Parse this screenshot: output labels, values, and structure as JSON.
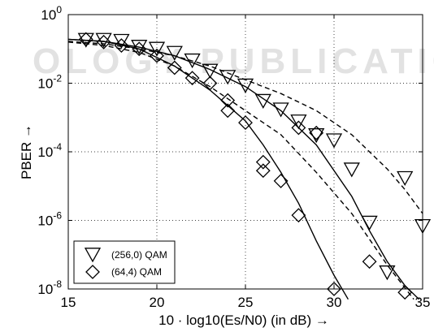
{
  "chart_data": {
    "type": "line",
    "xlabel": "10 · log10(Es/N0)   (in dB) →",
    "ylabel": "PBER →",
    "xlim": [
      15,
      35
    ],
    "ylim_log10": [
      -8,
      0
    ],
    "yscale": "log",
    "x_ticks": [
      "15",
      "20",
      "25",
      "30",
      "35"
    ],
    "y_ticks": [
      {
        "base": "10",
        "exp": "0"
      },
      {
        "base": "10",
        "exp": "-2"
      },
      {
        "base": "10",
        "exp": "-4"
      },
      {
        "base": "10",
        "exp": "-6"
      },
      {
        "base": "10",
        "exp": "-8"
      }
    ],
    "grid": true,
    "grid_style": "dotted",
    "legend_position": "bottom-left",
    "legend": [
      {
        "label": "(256,0) QAM",
        "marker": "triangle-down"
      },
      {
        "label": "(64,4) QAM",
        "marker": "diamond"
      }
    ],
    "watermark": "OLOGY PUBLICATION",
    "curves": [
      {
        "series": "(256,0) QAM",
        "style": "solid",
        "x": [
          15,
          17,
          19,
          21,
          23,
          25,
          27,
          29,
          31,
          32,
          33,
          34,
          34.8
        ],
        "log10_y": [
          -0.72,
          -0.78,
          -0.95,
          -1.2,
          -1.6,
          -2.1,
          -2.8,
          -3.8,
          -5.3,
          -6.3,
          -7.2,
          -7.9,
          -8.3
        ]
      },
      {
        "series": "(256,0) QAM",
        "style": "dashed",
        "x": [
          15,
          17,
          19,
          21,
          23,
          25,
          27,
          29,
          31,
          33,
          34,
          35
        ],
        "log10_y": [
          -0.78,
          -0.85,
          -1.0,
          -1.2,
          -1.5,
          -1.9,
          -2.3,
          -2.8,
          -3.5,
          -4.5,
          -5.1,
          -5.8
        ]
      },
      {
        "series": "(64,4) QAM",
        "style": "solid",
        "x": [
          15,
          17,
          19,
          21,
          23,
          25,
          26,
          27,
          28,
          29,
          30,
          30.8
        ],
        "log10_y": [
          -0.72,
          -0.78,
          -1.0,
          -1.5,
          -2.2,
          -3.1,
          -3.8,
          -4.6,
          -5.5,
          -6.6,
          -7.6,
          -8.3
        ]
      },
      {
        "series": "(64,4) QAM",
        "style": "dashed",
        "x": [
          15,
          17,
          19,
          21,
          23,
          25,
          27,
          29,
          31,
          33,
          34.5
        ],
        "log10_y": [
          -0.8,
          -0.9,
          -1.1,
          -1.5,
          -2.1,
          -2.8,
          -3.5,
          -4.6,
          -5.8,
          -7.3,
          -8.3
        ]
      }
    ],
    "markers": [
      {
        "series": "(256,0) QAM",
        "marker": "triangle-down",
        "x": [
          16,
          17,
          18,
          19,
          20,
          21,
          22,
          23,
          24,
          25,
          26,
          27,
          28,
          29,
          30,
          31,
          32,
          33,
          34,
          35
        ],
        "log10_y": [
          -0.72,
          -0.72,
          -0.75,
          -0.92,
          -0.98,
          -1.1,
          -1.32,
          -1.62,
          -1.8,
          -2.05,
          -2.5,
          -2.75,
          -3.1,
          -3.5,
          -3.65,
          -4.5,
          -6.05,
          -7.5,
          -4.75,
          -6.15
        ]
      },
      {
        "series": "(64,4) QAM",
        "marker": "diamond",
        "x": [
          16,
          17,
          18,
          19,
          20,
          21,
          22,
          23,
          24,
          24,
          25,
          26,
          26,
          27,
          28,
          28,
          29,
          30,
          32,
          34
        ],
        "log10_y": [
          -0.72,
          -0.8,
          -0.9,
          -1.0,
          -1.2,
          -1.55,
          -1.85,
          -2.0,
          -2.5,
          -2.8,
          -3.15,
          -4.3,
          -4.55,
          -4.85,
          -3.3,
          -5.85,
          -3.45,
          -8.0,
          -7.2,
          -8.1
        ]
      }
    ]
  }
}
